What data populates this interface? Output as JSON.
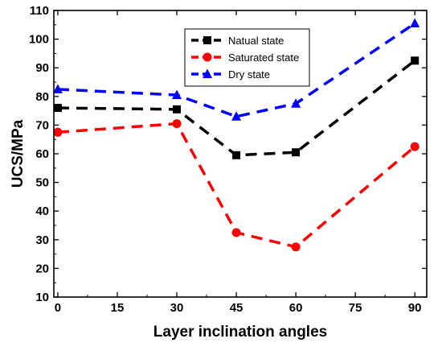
{
  "chart_data": {
    "type": "line",
    "xlabel": "Layer inclination angles",
    "ylabel": "UCS/MPa",
    "x": [
      0,
      30,
      45,
      60,
      90
    ],
    "xticks": [
      0,
      15,
      30,
      45,
      60,
      75,
      90
    ],
    "yticks": [
      10,
      20,
      30,
      40,
      50,
      60,
      70,
      80,
      90,
      100,
      110
    ],
    "xlim": [
      -1,
      93
    ],
    "ylim": [
      10,
      110
    ],
    "grid": false,
    "legend_position": "top-center",
    "series": [
      {
        "name": "Natual state",
        "values": [
          76,
          75.5,
          59.5,
          60.5,
          92.5
        ],
        "color": "#000000",
        "marker": "square"
      },
      {
        "name": "Saturated state",
        "values": [
          67.5,
          70.5,
          32.5,
          27.5,
          62.5
        ],
        "color": "#ff0000",
        "marker": "circle"
      },
      {
        "name": "Dry state",
        "values": [
          82.5,
          80.5,
          73,
          77.5,
          105.5
        ],
        "color": "#0000ff",
        "marker": "triangle"
      }
    ]
  }
}
